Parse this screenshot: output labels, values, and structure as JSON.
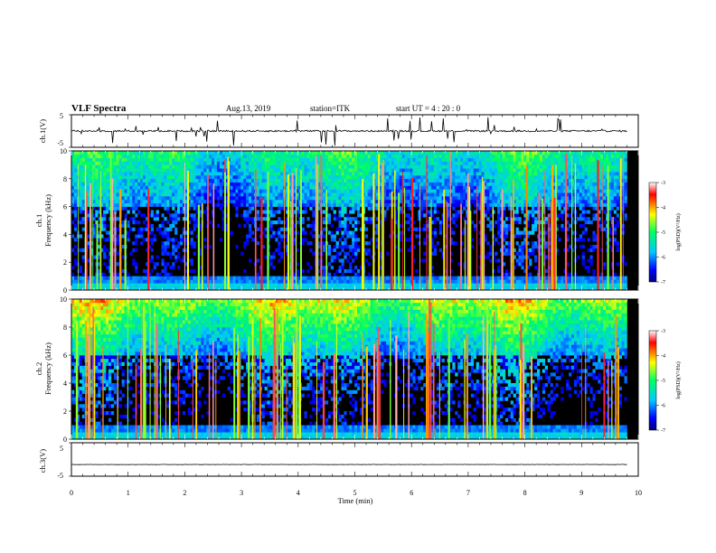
{
  "header": {
    "title": "VLF Spectra",
    "date": "Aug.13, 2019",
    "station": "station=ITK",
    "start_ut": "start  UT =   4 : 20 : 0"
  },
  "chart_data": [
    {
      "type": "line",
      "panel": "ch1_waveform",
      "ylabel": "ch.1(V)",
      "ylim": [
        -5,
        5
      ],
      "yticks": [
        "5",
        "-5"
      ],
      "xlim": [
        0,
        10
      ],
      "baseline": 0,
      "series": [
        {
          "color": "#000000",
          "description_values": {
            "baseline_V": 0
          }
        }
      ]
    },
    {
      "type": "heatmap",
      "panel": "ch1_spectrogram",
      "ylabel_line1": "ch.1",
      "ylabel_line2": "Frequency (kHz)",
      "ylim": [
        0,
        10
      ],
      "yticks": [
        "0",
        "2",
        "4",
        "6",
        "8",
        "10"
      ],
      "xlim": [
        0,
        9.8
      ],
      "colorbar": {
        "label": "log(PSD)(V²/Hz)",
        "range": [
          -7,
          -3
        ],
        "ticks": [
          "-3",
          "-4",
          "-5",
          "-6",
          "-7"
        ],
        "colors": [
          "#000080",
          "#0000ff",
          "#00c8ff",
          "#00ff60",
          "#ffff00",
          "#ff0000",
          "#ffffff"
        ]
      }
    },
    {
      "type": "heatmap",
      "panel": "ch2_spectrogram",
      "ylabel_line1": "ch.2",
      "ylabel_line2": "Frequency (kHz)",
      "ylim": [
        0,
        10
      ],
      "yticks": [
        "0",
        "2",
        "4",
        "6",
        "8",
        "10"
      ],
      "xlim": [
        0,
        9.8
      ],
      "colorbar": {
        "label": "log(PSD)(V²/Hz)",
        "range": [
          -7,
          -3
        ],
        "ticks": [
          "-3",
          "-4",
          "-5",
          "-6",
          "-7"
        ],
        "colors": [
          "#000080",
          "#0000ff",
          "#00c8ff",
          "#00ff60",
          "#ffff00",
          "#ff0000",
          "#ffffff"
        ]
      }
    },
    {
      "type": "line",
      "panel": "ch3_waveform",
      "ylabel": "ch.3(V)",
      "ylim": [
        -5,
        5
      ],
      "yticks": [
        "5",
        "-5"
      ],
      "xlim": [
        0,
        10
      ],
      "baseline": -1.5,
      "series": [
        {
          "color": "#000000"
        }
      ]
    }
  ],
  "xaxis": {
    "label": "Time (min)",
    "ticks": [
      "0",
      "1",
      "2",
      "3",
      "4",
      "5",
      "6",
      "7",
      "8",
      "9",
      "10"
    ]
  }
}
